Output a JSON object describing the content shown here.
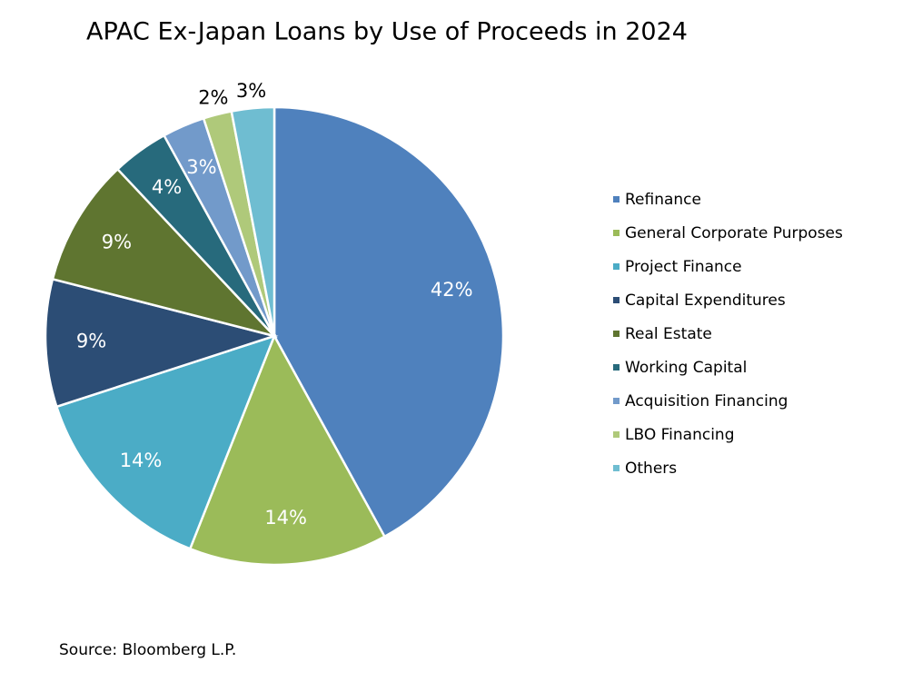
{
  "chart_data": {
    "type": "pie",
    "title": "APAC Ex-Japan Loans by Use of Proceeds in 2024",
    "categories": [
      "Refinance",
      "General Corporate Purposes",
      "Project Finance",
      "Capital Expenditures",
      "Real Estate",
      "Working Capital",
      "Acquisition Financing",
      "LBO Financing",
      "Others"
    ],
    "values": [
      42,
      14,
      14,
      9,
      9,
      4,
      3,
      2,
      3
    ],
    "value_labels": [
      "42%",
      "14%",
      "14%",
      "9%",
      "9%",
      "4%",
      "3%",
      "2%",
      "3%"
    ],
    "colors": [
      "#4f81bd",
      "#9bbb59",
      "#4bacc6",
      "#2c4d75",
      "#5f7530",
      "#276a7c",
      "#729aca",
      "#afc97a",
      "#6fbdd1"
    ],
    "legend": "right",
    "source": "Source: Bloomberg L.P."
  }
}
